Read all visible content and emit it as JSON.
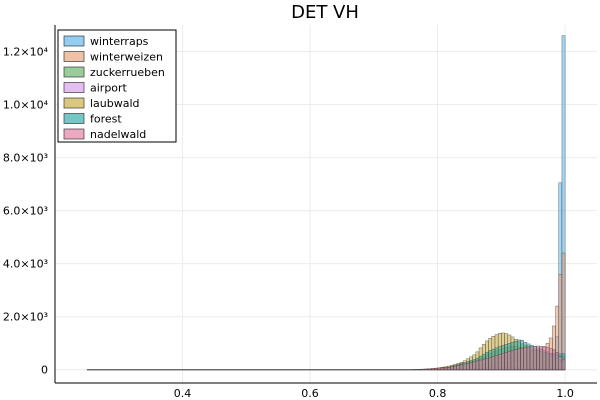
{
  "chart_data": {
    "type": "bar",
    "title": "DET VH",
    "xlabel": "",
    "ylabel": "",
    "xlim": [
      0.2,
      1.05
    ],
    "ylim": [
      -500,
      13000
    ],
    "grid": true,
    "legend_position": "top-left",
    "x_ticks": [
      {
        "value": 0.4,
        "label": "0.4"
      },
      {
        "value": 0.6,
        "label": "0.6"
      },
      {
        "value": 0.8,
        "label": "0.8"
      },
      {
        "value": 1.0,
        "label": "1.0"
      }
    ],
    "y_ticks": [
      {
        "value": 0,
        "label": "0"
      },
      {
        "value": 2000,
        "label": "2.0×10³"
      },
      {
        "value": 4000,
        "label": "4.0×10³"
      },
      {
        "value": 6000,
        "label": "6.0×10³"
      },
      {
        "value": 8000,
        "label": "8.0×10³"
      },
      {
        "value": 10000,
        "label": "1.0×10⁴"
      },
      {
        "value": 12000,
        "label": "1.2×10⁴"
      }
    ],
    "bin_width": 0.005,
    "series": [
      {
        "name": "winterraps",
        "color": "#56b4e9",
        "x": [
          0.8,
          0.85,
          0.9,
          0.95,
          0.98,
          0.99,
          0.995
        ],
        "values": [
          50,
          150,
          300,
          400,
          500,
          1500,
          12600
        ]
      },
      {
        "name": "winterweizen",
        "color": "#e69f78",
        "x": [
          0.8,
          0.85,
          0.9,
          0.93,
          0.95,
          0.97,
          0.98,
          0.985,
          0.99,
          0.995
        ],
        "values": [
          50,
          200,
          450,
          600,
          700,
          900,
          1300,
          2000,
          2800,
          4400
        ]
      },
      {
        "name": "zuckerrueben",
        "color": "#66b266",
        "x": [
          0.82,
          0.86,
          0.88,
          0.9,
          0.92,
          0.94,
          0.96,
          0.98,
          0.995
        ],
        "values": [
          100,
          350,
          600,
          800,
          900,
          800,
          700,
          600,
          500
        ]
      },
      {
        "name": "airport",
        "color": "#d59be8",
        "x": [
          0.8,
          0.85,
          0.9,
          0.95
        ],
        "values": [
          20,
          50,
          80,
          60
        ]
      },
      {
        "name": "laubwald",
        "color": "#c9a93a",
        "x": [
          0.8,
          0.82,
          0.84,
          0.86,
          0.87,
          0.88,
          0.89,
          0.9,
          0.91,
          0.92,
          0.93,
          0.94,
          0.95,
          0.96,
          0.97,
          0.98,
          0.99,
          0.995
        ],
        "values": [
          60,
          150,
          300,
          600,
          900,
          1150,
          1300,
          1400,
          1350,
          1200,
          1000,
          900,
          800,
          700,
          600,
          500,
          400,
          300
        ]
      },
      {
        "name": "forest",
        "color": "#2aa9a6",
        "x": [
          0.82,
          0.86,
          0.88,
          0.9,
          0.92,
          0.93,
          0.94,
          0.96,
          0.98
        ],
        "values": [
          100,
          400,
          700,
          900,
          1050,
          1150,
          1000,
          800,
          600
        ]
      },
      {
        "name": "nadelwald",
        "color": "#e37aa1",
        "x": [
          0.78,
          0.82,
          0.85,
          0.88,
          0.9,
          0.92,
          0.94,
          0.96,
          0.97,
          0.98,
          0.99,
          0.995
        ],
        "values": [
          30,
          100,
          250,
          450,
          600,
          750,
          850,
          900,
          850,
          800,
          600,
          400
        ]
      }
    ]
  }
}
